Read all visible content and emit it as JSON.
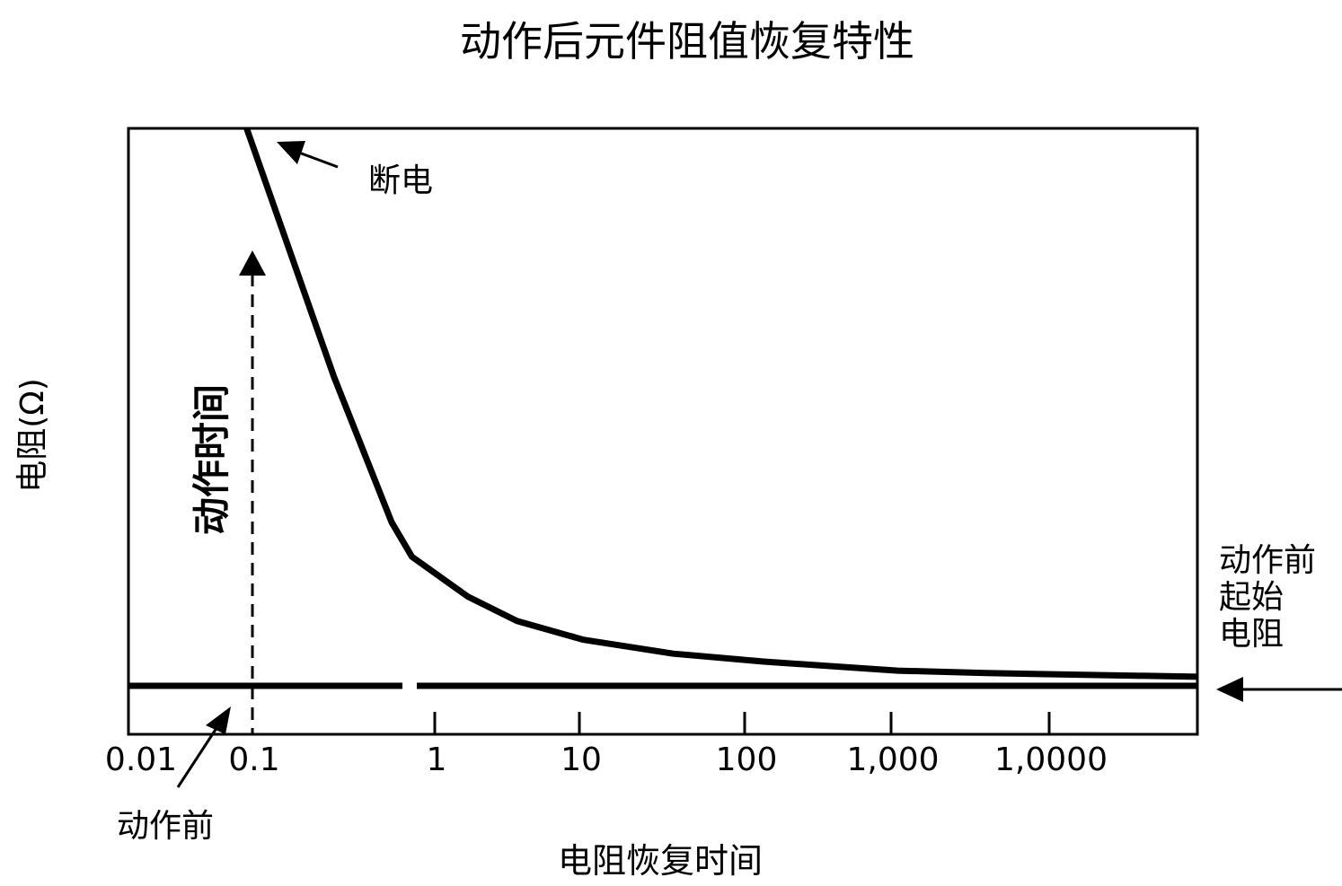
{
  "chart_data": {
    "type": "line",
    "title": "动作后元件阻值恢复特性",
    "xlabel": "电阻恢复时间",
    "ylabel": "电阻(Ω)",
    "x_scale": "log",
    "x_ticks": [
      {
        "value": 0.01,
        "label": "0.01"
      },
      {
        "value": 0.1,
        "label": "0.1"
      },
      {
        "value": 1,
        "label": "1"
      },
      {
        "value": 10,
        "label": "10"
      },
      {
        "value": 100,
        "label": "100"
      },
      {
        "value": 1000,
        "label": "1,000"
      },
      {
        "value": 10000,
        "label": "1,0000"
      }
    ],
    "ylim": [
      0,
      100
    ],
    "grid": false,
    "series": [
      {
        "points": [
          [
            0.093,
            100
          ],
          [
            0.28,
            59
          ],
          [
            0.58,
            35
          ],
          [
            0.75,
            29.3
          ],
          [
            1.7,
            22.7
          ],
          [
            3.7,
            18.7
          ],
          [
            10.6,
            15.6
          ],
          [
            37,
            13.3
          ],
          [
            135,
            12
          ],
          [
            1100,
            10.5
          ],
          [
            4000,
            10.1
          ],
          [
            87000,
            9.5
          ]
        ]
      }
    ],
    "baseline": {
      "y": 8
    },
    "annotations": {
      "cutoff": "断电",
      "action_time": "动作时间",
      "before_action": "动作前",
      "initial_resistance": [
        "动作前",
        "起始",
        "电阻"
      ]
    }
  }
}
